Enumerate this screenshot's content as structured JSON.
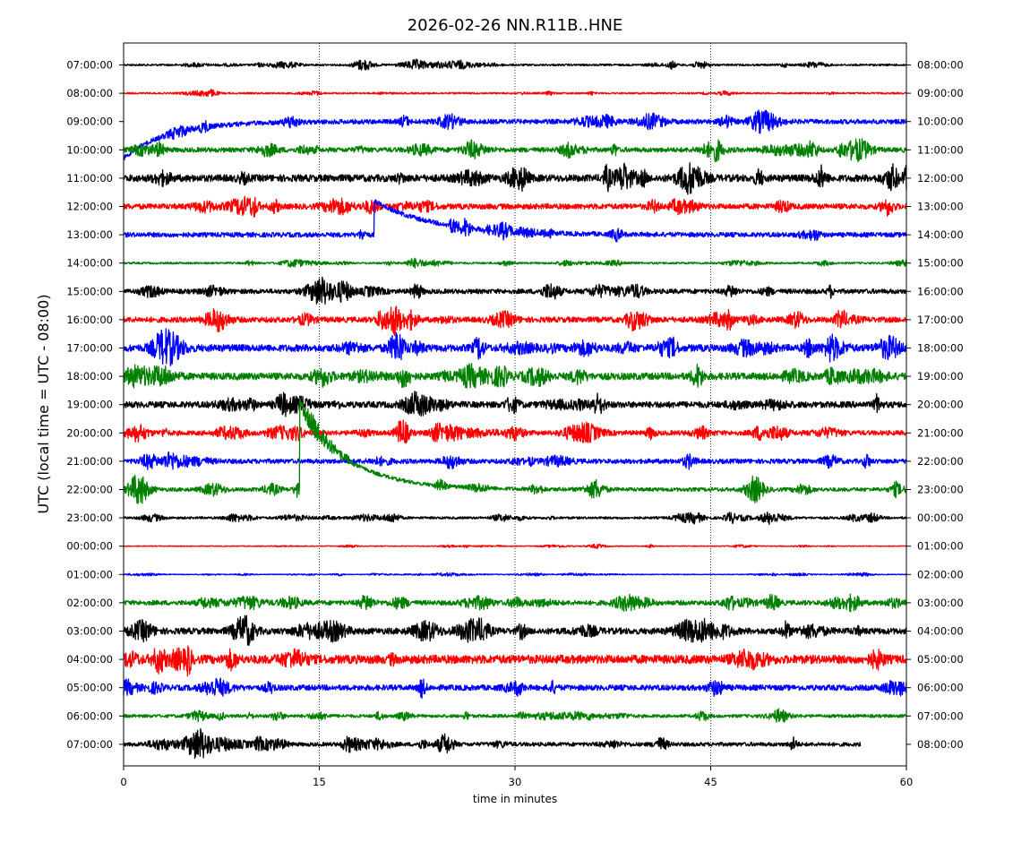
{
  "chart_data": {
    "type": "line",
    "title": "2026-02-26 NN.R11B..HNE",
    "xlabel": "time in minutes",
    "ylabel": "UTC (local time = UTC - 08:00)",
    "xlim": [
      0,
      60
    ],
    "x_ticks": [
      "0",
      "15",
      "30",
      "45",
      "60"
    ],
    "x_tick_values": [
      0,
      15,
      30,
      45,
      60
    ],
    "grid": "vertical dotted at 15, 30, 45",
    "line_colors": [
      "#000000",
      "#ff0000",
      "#0000ff",
      "#008000"
    ],
    "left_tick_labels": [
      "07:00:00",
      "08:00:00",
      "09:00:00",
      "10:00:00",
      "11:00:00",
      "12:00:00",
      "13:00:00",
      "14:00:00",
      "15:00:00",
      "16:00:00",
      "17:00:00",
      "18:00:00",
      "19:00:00",
      "20:00:00",
      "21:00:00",
      "22:00:00",
      "23:00:00",
      "00:00:00",
      "01:00:00",
      "02:00:00",
      "03:00:00",
      "04:00:00",
      "05:00:00",
      "06:00:00",
      "07:00:00"
    ],
    "right_tick_labels": [
      "08:00:00",
      "09:00:00",
      "10:00:00",
      "11:00:00",
      "12:00:00",
      "13:00:00",
      "14:00:00",
      "15:00:00",
      "16:00:00",
      "17:00:00",
      "18:00:00",
      "19:00:00",
      "20:00:00",
      "21:00:00",
      "22:00:00",
      "23:00:00",
      "00:00:00",
      "01:00:00",
      "02:00:00",
      "03:00:00",
      "04:00:00",
      "05:00:00",
      "06:00:00",
      "07:00:00",
      "08:00:00"
    ],
    "traces": [
      {
        "amplitude": 0.12,
        "end_minute": 60
      },
      {
        "amplitude": 0.1,
        "end_minute": 60
      },
      {
        "amplitude": 0.15,
        "end_minute": 60,
        "drift_start": 1.3,
        "drift_minutes": 10
      },
      {
        "amplitude": 0.3,
        "end_minute": 60
      },
      {
        "amplitude": 0.45,
        "end_minute": 60
      },
      {
        "amplitude": 0.35,
        "end_minute": 60
      },
      {
        "amplitude": 0.15,
        "end_minute": 60,
        "step": {
          "minute": 19.2,
          "height": 1.2,
          "decay_minutes": 4.5
        }
      },
      {
        "amplitude": 0.12,
        "end_minute": 60
      },
      {
        "amplitude": 0.3,
        "end_minute": 60
      },
      {
        "amplitude": 0.35,
        "end_minute": 60
      },
      {
        "amplitude": 0.45,
        "end_minute": 60
      },
      {
        "amplitude": 0.45,
        "end_minute": 60
      },
      {
        "amplitude": 0.4,
        "end_minute": 60
      },
      {
        "amplitude": 0.3,
        "end_minute": 60
      },
      {
        "amplitude": 0.3,
        "end_minute": 60
      },
      {
        "amplitude": 0.12,
        "end_minute": 60,
        "step": {
          "minute": 13.5,
          "height": 3.05,
          "decay_minutes": 3.5
        }
      },
      {
        "amplitude": 0.15,
        "end_minute": 60
      },
      {
        "amplitude": 0.05,
        "end_minute": 60
      },
      {
        "amplitude": 0.05,
        "end_minute": 60
      },
      {
        "amplitude": 0.3,
        "end_minute": 60
      },
      {
        "amplitude": 0.4,
        "end_minute": 60
      },
      {
        "amplitude": 0.55,
        "end_minute": 60
      },
      {
        "amplitude": 0.35,
        "end_minute": 60
      },
      {
        "amplitude": 0.2,
        "end_minute": 60
      },
      {
        "amplitude": 0.25,
        "end_minute": 56.5
      }
    ]
  }
}
